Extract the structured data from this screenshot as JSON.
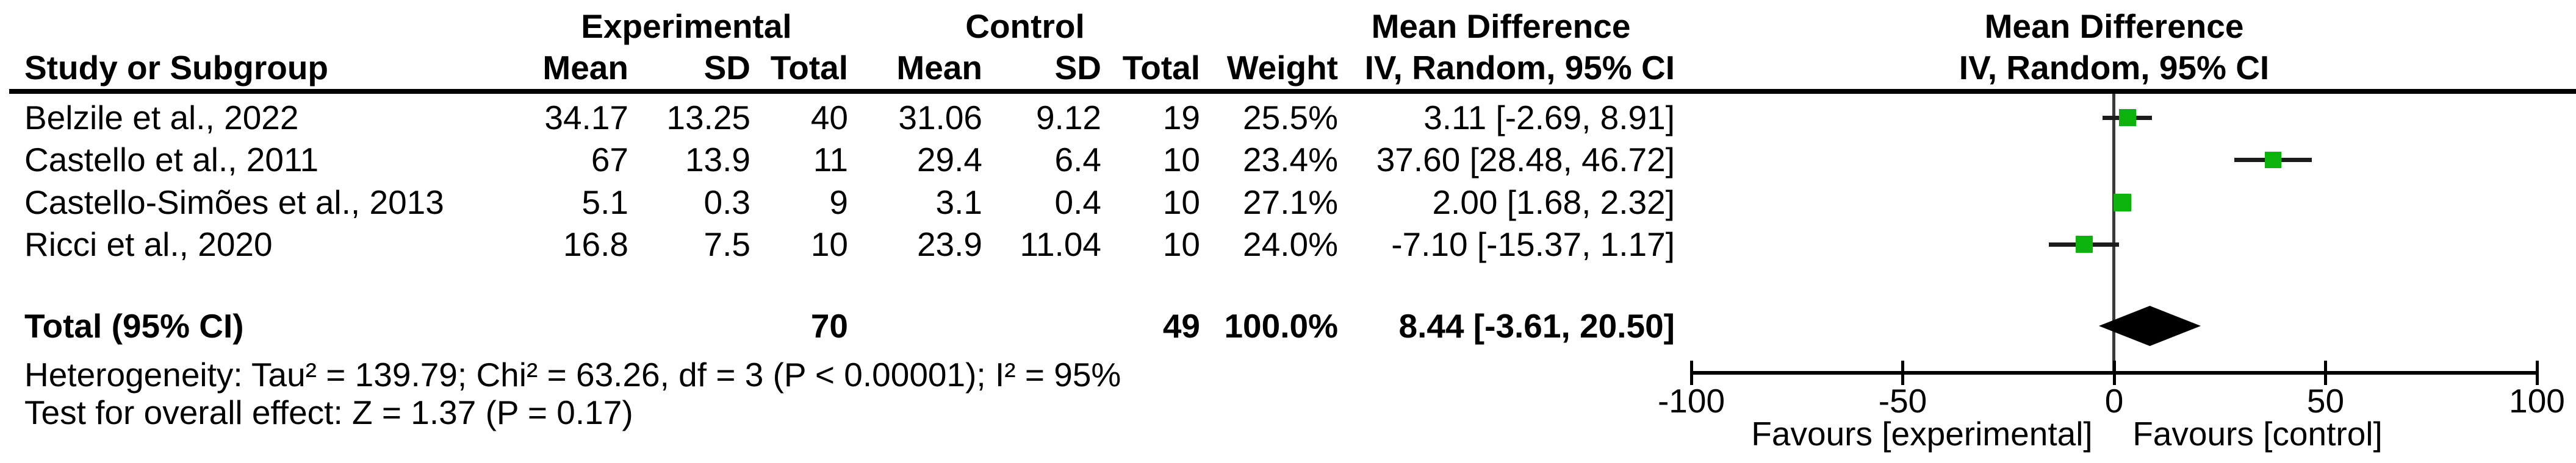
{
  "chart_data": {
    "type": "forest",
    "title_left": "Mean Difference",
    "title_right": "Mean Difference",
    "method_label": "IV, Random, 95% CI",
    "group_headers": {
      "experimental": "Experimental",
      "control": "Control",
      "mean_difference_table": "Mean Difference",
      "plot_line1": "Mean Difference",
      "plot_line2": "IV, Random, 95% CI"
    },
    "columns": [
      "Study or Subgroup",
      "Mean",
      "SD",
      "Total",
      "Mean",
      "SD",
      "Total",
      "Weight",
      "IV, Random, 95% CI"
    ],
    "studies": [
      {
        "name": "Belzile et al., 2022",
        "exp_mean": "34.17",
        "exp_sd": "13.25",
        "exp_total": "40",
        "ctrl_mean": "31.06",
        "ctrl_sd": "9.12",
        "ctrl_total": "19",
        "weight": "25.5%",
        "ci_text": "3.11 [-2.69, 8.91]",
        "md": 3.11,
        "ci_low": -2.69,
        "ci_high": 8.91,
        "weight_pct": 25.5
      },
      {
        "name": "Castello et al., 2011",
        "exp_mean": "67",
        "exp_sd": "13.9",
        "exp_total": "11",
        "ctrl_mean": "29.4",
        "ctrl_sd": "6.4",
        "ctrl_total": "10",
        "weight": "23.4%",
        "ci_text": "37.60 [28.48, 46.72]",
        "md": 37.6,
        "ci_low": 28.48,
        "ci_high": 46.72,
        "weight_pct": 23.4
      },
      {
        "name": "Castello-Simões et al., 2013",
        "exp_mean": "5.1",
        "exp_sd": "0.3",
        "exp_total": "9",
        "ctrl_mean": "3.1",
        "ctrl_sd": "0.4",
        "ctrl_total": "10",
        "weight": "27.1%",
        "ci_text": "2.00 [1.68, 2.32]",
        "md": 2.0,
        "ci_low": 1.68,
        "ci_high": 2.32,
        "weight_pct": 27.1
      },
      {
        "name": "Ricci et al., 2020",
        "exp_mean": "16.8",
        "exp_sd": "7.5",
        "exp_total": "10",
        "ctrl_mean": "23.9",
        "ctrl_sd": "11.04",
        "ctrl_total": "10",
        "weight": "24.0%",
        "ci_text": "-7.10 [-15.37, 1.17]",
        "md": -7.1,
        "ci_low": -15.37,
        "ci_high": 1.17,
        "weight_pct": 24.0
      }
    ],
    "total": {
      "label": "Total (95% CI)",
      "exp_total": "70",
      "ctrl_total": "49",
      "weight": "100.0%",
      "ci_text": "8.44 [-3.61, 20.50]",
      "md": 8.44,
      "ci_low": -3.61,
      "ci_high": 20.5
    },
    "heterogeneity": "Heterogeneity: Tau² = 139.79; Chi² = 63.26, df = 3 (P < 0.00001); I² = 95%",
    "overall_effect": "Test for overall effect: Z = 1.37 (P = 0.17)",
    "axis": {
      "ticks": [
        -100,
        -50,
        0,
        50,
        100
      ],
      "xlim": [
        -100,
        100
      ],
      "left_label": "Favours [experimental]",
      "right_label": "Favours [control]"
    },
    "colors": {
      "square": "#0DB30D",
      "diamond": "#000000",
      "ci_line": "#1c1c1c",
      "zero_line": "#3a3a3a",
      "text": "#000000"
    }
  }
}
